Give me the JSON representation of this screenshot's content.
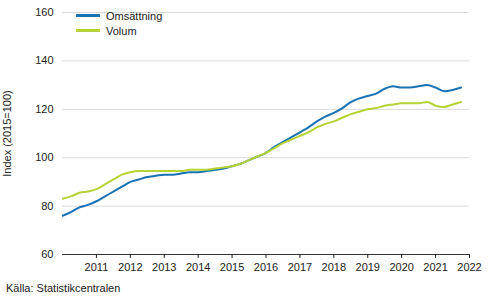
{
  "chart_data": {
    "type": "line",
    "y_label": "Index (2015=100)",
    "caption": "Källa: Statistikcentralen",
    "x": [
      2010,
      2010.25,
      2010.5,
      2010.75,
      2011,
      2011.25,
      2011.5,
      2011.75,
      2012,
      2012.25,
      2012.5,
      2012.75,
      2013,
      2013.25,
      2013.5,
      2013.75,
      2014,
      2014.25,
      2014.5,
      2014.75,
      2015,
      2015.25,
      2015.5,
      2015.75,
      2016,
      2016.25,
      2016.5,
      2016.75,
      2017,
      2017.25,
      2017.5,
      2017.75,
      2018,
      2018.25,
      2018.5,
      2018.75,
      2019,
      2019.25,
      2019.5,
      2019.75,
      2020,
      2020.25,
      2020.5,
      2020.75,
      2021,
      2021.25,
      2021.5,
      2021.75
    ],
    "series": [
      {
        "name": "Omsättning",
        "color": "#1a72b4",
        "values": [
          76,
          77.5,
          79.5,
          80.5,
          82,
          84,
          86,
          88,
          90,
          91,
          92,
          92.5,
          93,
          93,
          93.5,
          94,
          94,
          94.5,
          95,
          95.5,
          96.5,
          97.5,
          99,
          100.5,
          102,
          104.5,
          106.5,
          108.5,
          110.5,
          112.5,
          115,
          117,
          118.5,
          120.5,
          123,
          124.5,
          125.5,
          126.5,
          128.5,
          129.5,
          129,
          129,
          129.5,
          130,
          129,
          127.5,
          128,
          129
        ]
      },
      {
        "name": "Volum",
        "color": "#b5d334",
        "values": [
          83,
          84,
          85.5,
          86,
          87,
          89,
          91,
          93,
          94,
          94.5,
          94.5,
          94.5,
          94.5,
          94.5,
          94.5,
          95,
          95,
          95,
          95.5,
          96,
          96.5,
          97.5,
          99,
          100.5,
          102,
          104,
          106,
          107.5,
          109,
          110.5,
          112.5,
          114,
          115,
          116.5,
          118,
          119,
          120,
          120.5,
          121.5,
          122,
          122.5,
          122.5,
          122.5,
          123,
          121.5,
          121,
          122,
          123
        ]
      }
    ],
    "xlim": [
      2010,
      2022
    ],
    "xticks": [
      2011,
      2012,
      2013,
      2014,
      2015,
      2016,
      2017,
      2018,
      2019,
      2020,
      2021,
      2022
    ],
    "ylim": [
      60,
      160
    ],
    "yticks": [
      60,
      80,
      100,
      120,
      140,
      160
    ],
    "grid": true,
    "legend": "top-left"
  }
}
